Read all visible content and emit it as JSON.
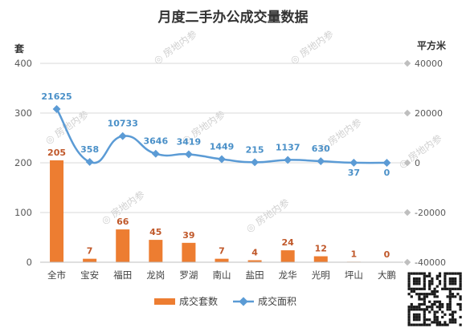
{
  "chart_data": {
    "type": "bar+line",
    "title": "月度二手办公成交量数据",
    "left_axis_label": "套",
    "right_axis_label": "平方米",
    "categories": [
      "全市",
      "宝安",
      "福田",
      "龙岗",
      "罗湖",
      "南山",
      "盐田",
      "龙华",
      "光明",
      "坪山",
      "大鹏"
    ],
    "left_ylim": [
      0,
      400
    ],
    "left_ticks": [
      "0",
      "100",
      "200",
      "300",
      "400"
    ],
    "right_ylim": [
      -40000,
      40000
    ],
    "right_ticks": [
      "-40000",
      "-20000",
      "0",
      "20000",
      "40000"
    ],
    "series": [
      {
        "name": "成交套数",
        "type": "bar",
        "axis": "left",
        "color": "#ED7D31",
        "values": [
          205,
          7,
          66,
          45,
          39,
          7,
          4,
          24,
          12,
          1,
          0
        ]
      },
      {
        "name": "成交面积",
        "type": "line",
        "axis": "right",
        "color": "#5B9BD5",
        "values": [
          21625,
          358,
          10733,
          3646,
          3419,
          1449,
          215,
          1137,
          630,
          37,
          0
        ]
      }
    ],
    "grid": true,
    "legend_position": "bottom"
  },
  "watermark_text": "房地内参"
}
